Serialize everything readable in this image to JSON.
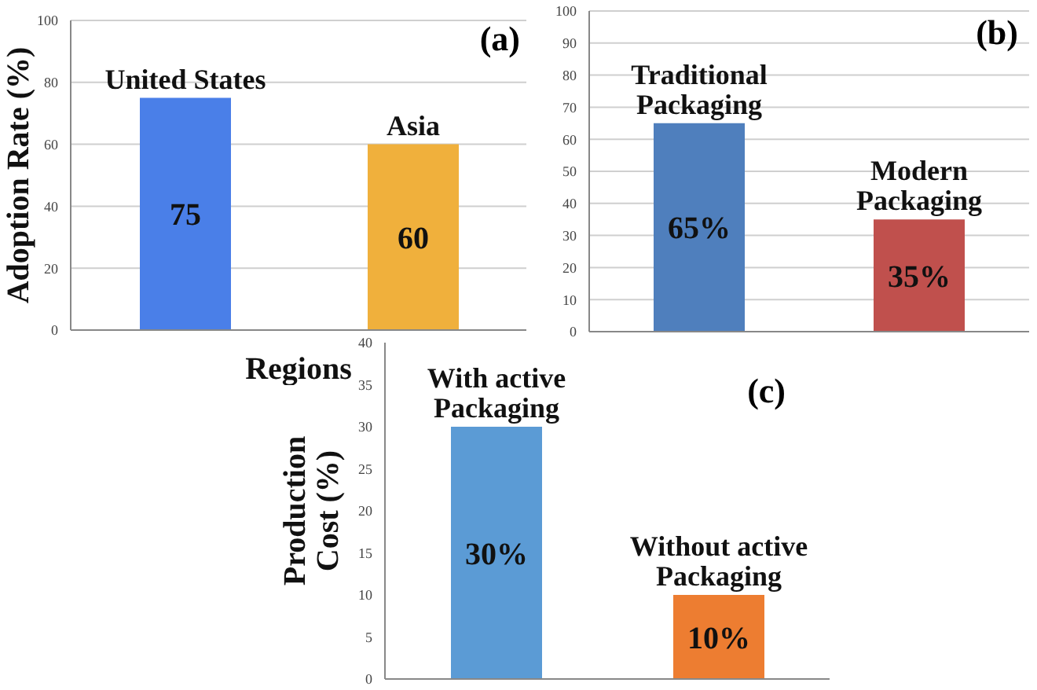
{
  "chart_data": [
    {
      "type": "bar",
      "title": "(a)",
      "xlabel": "Regions",
      "ylabel": "Adoption Rate (%)",
      "categories": [
        "United States",
        "Asia"
      ],
      "values": [
        75,
        60
      ],
      "colors": [
        "#4a7fe8",
        "#f0b03c"
      ],
      "ylim": [
        0,
        100
      ],
      "yticks": [
        0,
        20,
        40,
        60,
        80,
        100
      ],
      "grid": "y",
      "tick_labels": "y",
      "data_labels": true
    },
    {
      "type": "bar",
      "title": "(b)",
      "categories": [
        "Traditional Packaging",
        "Modern Packaging"
      ],
      "values": [
        65,
        35
      ],
      "colors": [
        "#4f7fbd",
        "#c0504d"
      ],
      "value_labels": [
        "65%",
        "35%"
      ],
      "ylim": [
        0,
        100
      ],
      "yticks": [
        0,
        10,
        20,
        30,
        40,
        50,
        60,
        70,
        80,
        90,
        100
      ],
      "grid": "y",
      "tick_labels": "y"
    },
    {
      "type": "bar",
      "title": "(c)",
      "ylabel": "Production Cost (%)",
      "categories": [
        "With active Packaging",
        "Without active Packaging"
      ],
      "values": [
        30,
        10
      ],
      "colors": [
        "#5b9bd5",
        "#ed7d31"
      ],
      "value_labels": [
        "30%",
        "10%"
      ],
      "ylim": [
        0,
        40
      ],
      "yticks": [
        0,
        5,
        10,
        15,
        20,
        25,
        30,
        35,
        40
      ],
      "tick_labels": "y"
    }
  ]
}
